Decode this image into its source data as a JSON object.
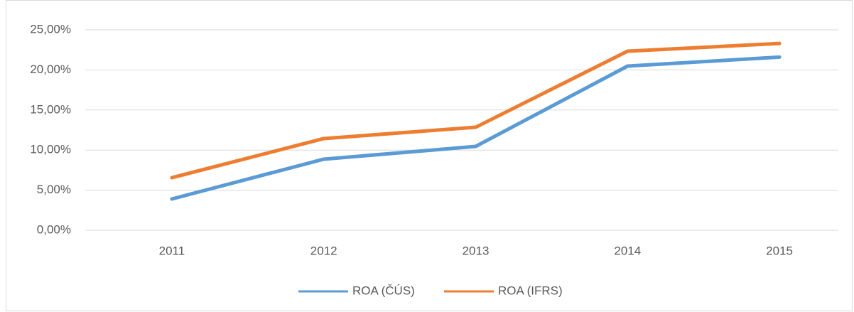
{
  "chart_data": {
    "type": "line",
    "categories": [
      "2011",
      "2012",
      "2013",
      "2014",
      "2015"
    ],
    "series": [
      {
        "name": "ROA (ČÚS)",
        "color": "#5b9bd5",
        "values": [
          3.9,
          8.87,
          10.46,
          20.48,
          21.6
        ]
      },
      {
        "name": "ROA (IFRS)",
        "color": "#ed7d31",
        "values": [
          6.56,
          11.44,
          12.85,
          22.34,
          23.3
        ]
      }
    ],
    "ylim": [
      0,
      25
    ],
    "yticks": [
      {
        "value": 0,
        "label": "0,00%"
      },
      {
        "value": 5,
        "label": "5,00%"
      },
      {
        "value": 10,
        "label": "10,00%"
      },
      {
        "value": 15,
        "label": "15,00%"
      },
      {
        "value": 20,
        "label": "20,00%"
      },
      {
        "value": 25,
        "label": "25,00%"
      }
    ],
    "grid": true,
    "legend": "bottom"
  }
}
